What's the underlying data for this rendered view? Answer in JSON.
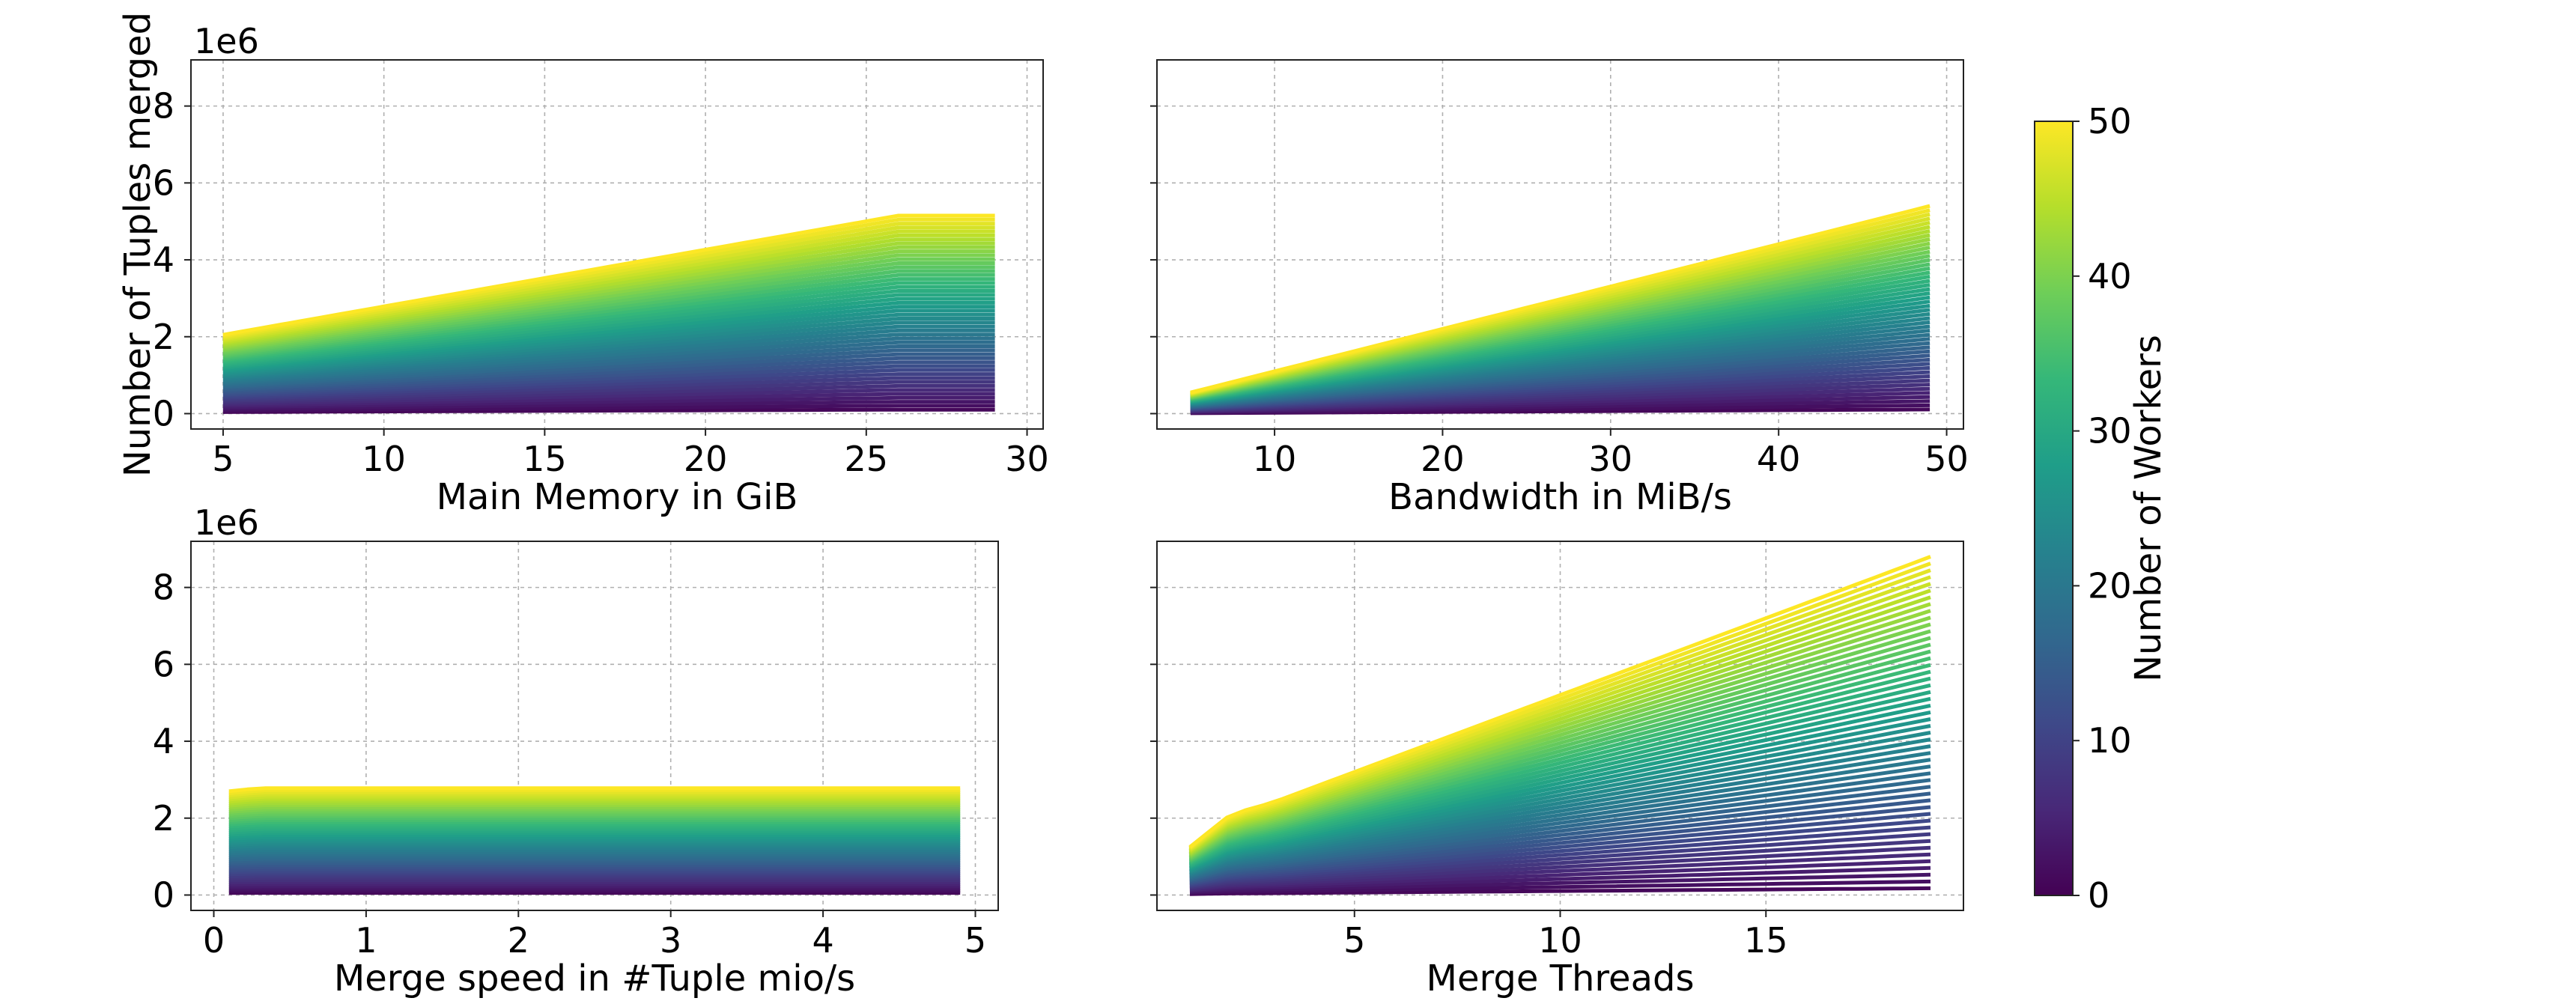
{
  "chart_data": [
    {
      "type": "line",
      "panel": "top-left",
      "xlabel": "Main Memory in GiB",
      "ylabel": "Number of Tuples merged",
      "y_offset_label": "1e6",
      "xlim": [
        4,
        30.5
      ],
      "ylim": [
        -0.4,
        9.2
      ],
      "xticks": [
        5,
        10,
        15,
        20,
        25,
        30
      ],
      "yticks": [
        0,
        2,
        4,
        6,
        8
      ],
      "grid": true,
      "workers_range": [
        1,
        50
      ],
      "max_series": {
        "x": [
          5,
          26,
          29
        ],
        "y": [
          2.05,
          5.15,
          5.15
        ]
      }
    },
    {
      "type": "line",
      "panel": "top-right",
      "xlabel": "Bandwidth in MiB/s",
      "ylabel": "",
      "xlim": [
        3,
        51
      ],
      "ylim": [
        -0.4,
        9.2
      ],
      "xticks": [
        10,
        20,
        30,
        40,
        50
      ],
      "yticks": [
        0,
        2,
        4,
        6,
        8
      ],
      "grid": true,
      "workers_range": [
        1,
        50
      ],
      "max_series": {
        "x": [
          5,
          49
        ],
        "y": [
          0.55,
          5.4
        ]
      }
    },
    {
      "type": "line",
      "panel": "bottom-left",
      "xlabel": "Merge speed in #Tuple mio/s",
      "ylabel": "",
      "y_offset_label": "1e6",
      "xlim": [
        -0.15,
        5.15
      ],
      "ylim": [
        -0.4,
        9.2
      ],
      "xticks": [
        0,
        1,
        2,
        3,
        4,
        5
      ],
      "yticks": [
        0,
        2,
        4,
        6,
        8
      ],
      "grid": true,
      "workers_range": [
        1,
        50
      ],
      "max_series": {
        "x": [
          0.1,
          0.3,
          4.9
        ],
        "y": [
          2.7,
          2.78,
          2.78
        ]
      }
    },
    {
      "type": "line",
      "panel": "bottom-right",
      "xlabel": "Merge Threads",
      "ylabel": "",
      "xlim": [
        0.2,
        19.8
      ],
      "ylim": [
        -0.4,
        9.2
      ],
      "xticks": [
        5,
        10,
        15
      ],
      "yticks": [
        0,
        2,
        4,
        6,
        8
      ],
      "grid": true,
      "workers_range": [
        1,
        50
      ],
      "max_series": {
        "x": [
          1,
          2,
          3,
          19
        ],
        "y": [
          1.25,
          2.1,
          2.4,
          8.8
        ]
      }
    }
  ],
  "colorbar": {
    "label": "Number of Workers",
    "min": 0,
    "max": 50,
    "ticks": [
      0,
      10,
      20,
      30,
      40,
      50
    ],
    "colormap": [
      "#440154",
      "#482878",
      "#3e4989",
      "#31688e",
      "#26828e",
      "#1f9e89",
      "#35b779",
      "#6ece58",
      "#b5de2b",
      "#fde725"
    ]
  }
}
